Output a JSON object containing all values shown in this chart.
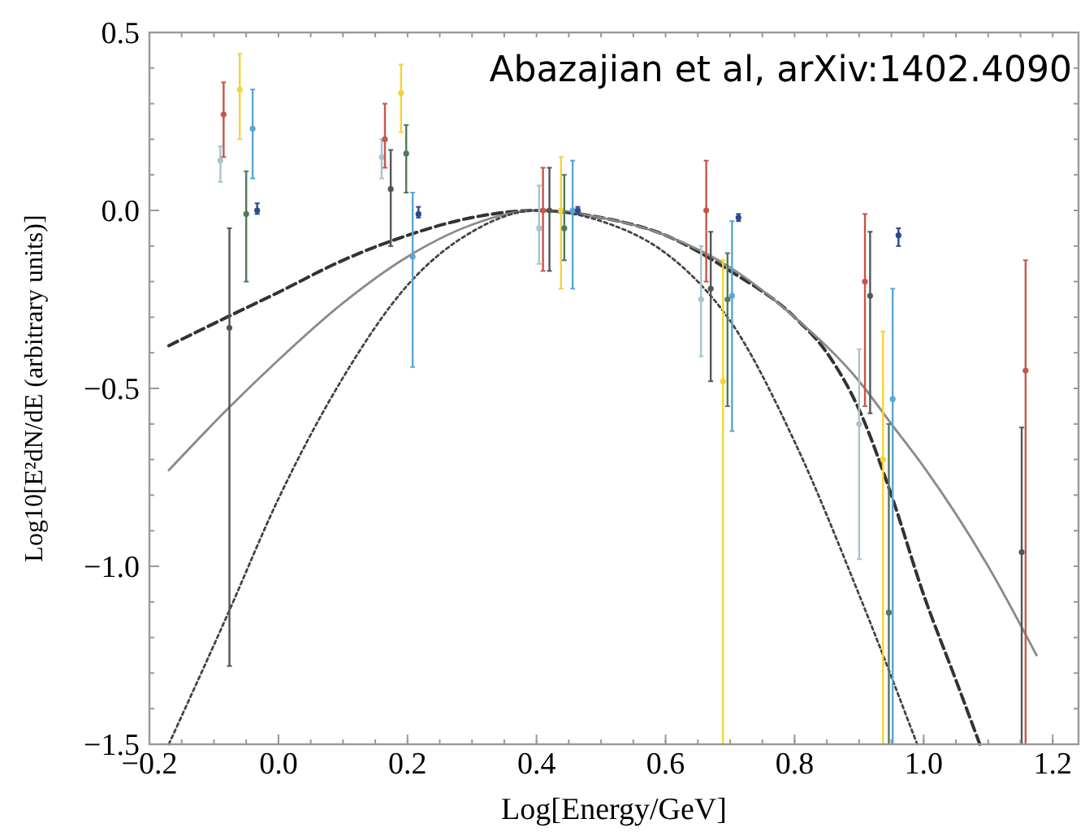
{
  "chart_data": {
    "type": "scatter",
    "xlabel": "Log[Energy/GeV]",
    "ylabel": "Log10[E²dN/dE (arbitrary units)]",
    "annotations": [
      "Abazajian et al, arXiv:1402.4090"
    ],
    "xlim": [
      -0.2,
      1.24
    ],
    "ylim": [
      -1.5,
      0.5
    ],
    "xticks": [
      {
        "value": -0.2,
        "label": "−0.2"
      },
      {
        "value": 0,
        "label": "0.0"
      },
      0.2,
      0.4,
      0.6,
      0.8,
      {
        "value": 1,
        "label": "1.0"
      },
      1.2
    ],
    "yticks": [
      {
        "value": -1.5,
        "label": "−1.5"
      },
      {
        "value": -1,
        "label": "−1.0"
      },
      {
        "value": -0.5,
        "label": "−0.5"
      },
      {
        "value": 0,
        "label": "0.0"
      },
      0.5
    ],
    "grid": false,
    "marker": "circle",
    "series": [
      {
        "type": "line",
        "marker": "none",
        "line_style": "dashed",
        "color": "#333333",
        "x": [
          -0.17,
          -0.08,
          0,
          0.1,
          0.2,
          0.3,
          0.4,
          0.5,
          0.6,
          0.7,
          0.8,
          0.85,
          0.9,
          0.95,
          1.0,
          1.05,
          1.087
        ],
        "values": [
          -0.38,
          -0.3,
          -0.23,
          -0.14,
          -0.07,
          -0.02,
          0,
          -0.02,
          -0.07,
          -0.17,
          -0.3,
          -0.4,
          -0.56,
          -0.8,
          -1.08,
          -1.32,
          -1.5
        ]
      },
      {
        "type": "line",
        "marker": "none",
        "line_style": "solid",
        "color": "#8a8a8a",
        "x": [
          -0.17,
          -0.08,
          0,
          0.1,
          0.2,
          0.3,
          0.4,
          0.5,
          0.6,
          0.7,
          0.8,
          0.9,
          0.95,
          1.0,
          1.1,
          1.175
        ],
        "values": [
          -0.73,
          -0.56,
          -0.42,
          -0.26,
          -0.13,
          -0.04,
          0,
          -0.02,
          -0.07,
          -0.16,
          -0.3,
          -0.48,
          -0.6,
          -0.72,
          -1.0,
          -1.25
        ]
      },
      {
        "type": "line",
        "marker": "none",
        "line_style": "dotted",
        "color": "#444444",
        "x": [
          -0.17,
          -0.08,
          0,
          0.1,
          0.2,
          0.3,
          0.4,
          0.5,
          0.6,
          0.65,
          0.7,
          0.8,
          0.9,
          0.99
        ],
        "values": [
          -1.5,
          -1.14,
          -0.81,
          -0.47,
          -0.21,
          -0.06,
          0,
          -0.03,
          -0.12,
          -0.2,
          -0.31,
          -0.65,
          -1.08,
          -1.5
        ]
      },
      {
        "color": "#a8c4cc",
        "x": [
          -0.09,
          0.16,
          0.404,
          0.655,
          0.9
        ],
        "values": [
          0.14,
          0.15,
          -0.05,
          -0.25,
          -0.6
        ],
        "errors": [
          [
            0.08,
            0.18
          ],
          [
            0.09,
            0.2
          ],
          [
            -0.15,
            0.07
          ],
          [
            -0.41,
            -0.1
          ],
          [
            -0.98,
            -0.39
          ]
        ]
      },
      {
        "color": "#c8554a",
        "x": [
          -0.085,
          0.165,
          0.41,
          0.663,
          0.909,
          1.158
        ],
        "values": [
          0.27,
          0.2,
          0,
          0,
          -0.2,
          -0.45
        ],
        "errors": [
          [
            0.15,
            0.36
          ],
          [
            0.12,
            0.3
          ],
          [
            -0.17,
            0.12
          ],
          [
            -0.2,
            0.14
          ],
          [
            -0.55,
            -0.01
          ],
          [
            -1.5,
            -0.14
          ]
        ]
      },
      {
        "color": "#555555",
        "x": [
          -0.076,
          0.174,
          0.42,
          0.67,
          0.917,
          1.152
        ],
        "values": [
          -0.33,
          0.06,
          0,
          -0.22,
          -0.24,
          -0.96
        ],
        "errors": [
          [
            -1.28,
            -0.05
          ],
          [
            -0.1,
            0.17
          ],
          [
            -0.17,
            0.12
          ],
          [
            -0.48,
            -0.06
          ],
          [
            -0.57,
            -0.06
          ],
          [
            -1.5,
            -0.61
          ]
        ]
      },
      {
        "color": "#f2d43a",
        "x": [
          -0.06,
          0.19,
          0.438,
          0.689,
          0.937
        ],
        "values": [
          0.34,
          0.33,
          0,
          -0.48,
          -0.7
        ],
        "errors": [
          [
            0.2,
            0.44
          ],
          [
            0.22,
            0.41
          ],
          [
            -0.22,
            0.15
          ],
          [
            -1.5,
            -0.14
          ],
          [
            -1.5,
            -0.34
          ]
        ]
      },
      {
        "color": "#4f7a5a",
        "x": [
          -0.05,
          0.198,
          0.443,
          0.696,
          0.946
        ],
        "values": [
          -0.01,
          0.16,
          -0.05,
          -0.25,
          -1.13
        ],
        "errors": [
          [
            -0.2,
            0.11
          ],
          [
            0.05,
            0.24
          ],
          [
            -0.14,
            0.1
          ],
          [
            -0.55,
            -0.12
          ],
          [
            -1.5,
            -0.6
          ]
        ]
      },
      {
        "color": "#5aa6d6",
        "x": [
          -0.04,
          0.208,
          0.456,
          0.703,
          0.952
        ],
        "values": [
          0.23,
          -0.13,
          0,
          -0.24,
          -0.53
        ],
        "errors": [
          [
            0.09,
            0.34
          ],
          [
            -0.44,
            0.05
          ],
          [
            -0.22,
            0.14
          ],
          [
            -0.62,
            -0.03
          ],
          [
            -1.5,
            -0.22
          ]
        ]
      },
      {
        "color": "#2c4a8c",
        "x": [
          -0.033,
          0.217,
          0.464,
          0.713,
          0.961
        ],
        "values": [
          0,
          -0.01,
          0,
          -0.02,
          -0.07
        ],
        "errors": [
          [
            -0.01,
            0.02
          ],
          [
            -0.02,
            0.01
          ],
          [
            -0.01,
            0.01
          ],
          [
            -0.03,
            -0.01
          ],
          [
            -0.1,
            -0.05
          ]
        ]
      }
    ]
  }
}
